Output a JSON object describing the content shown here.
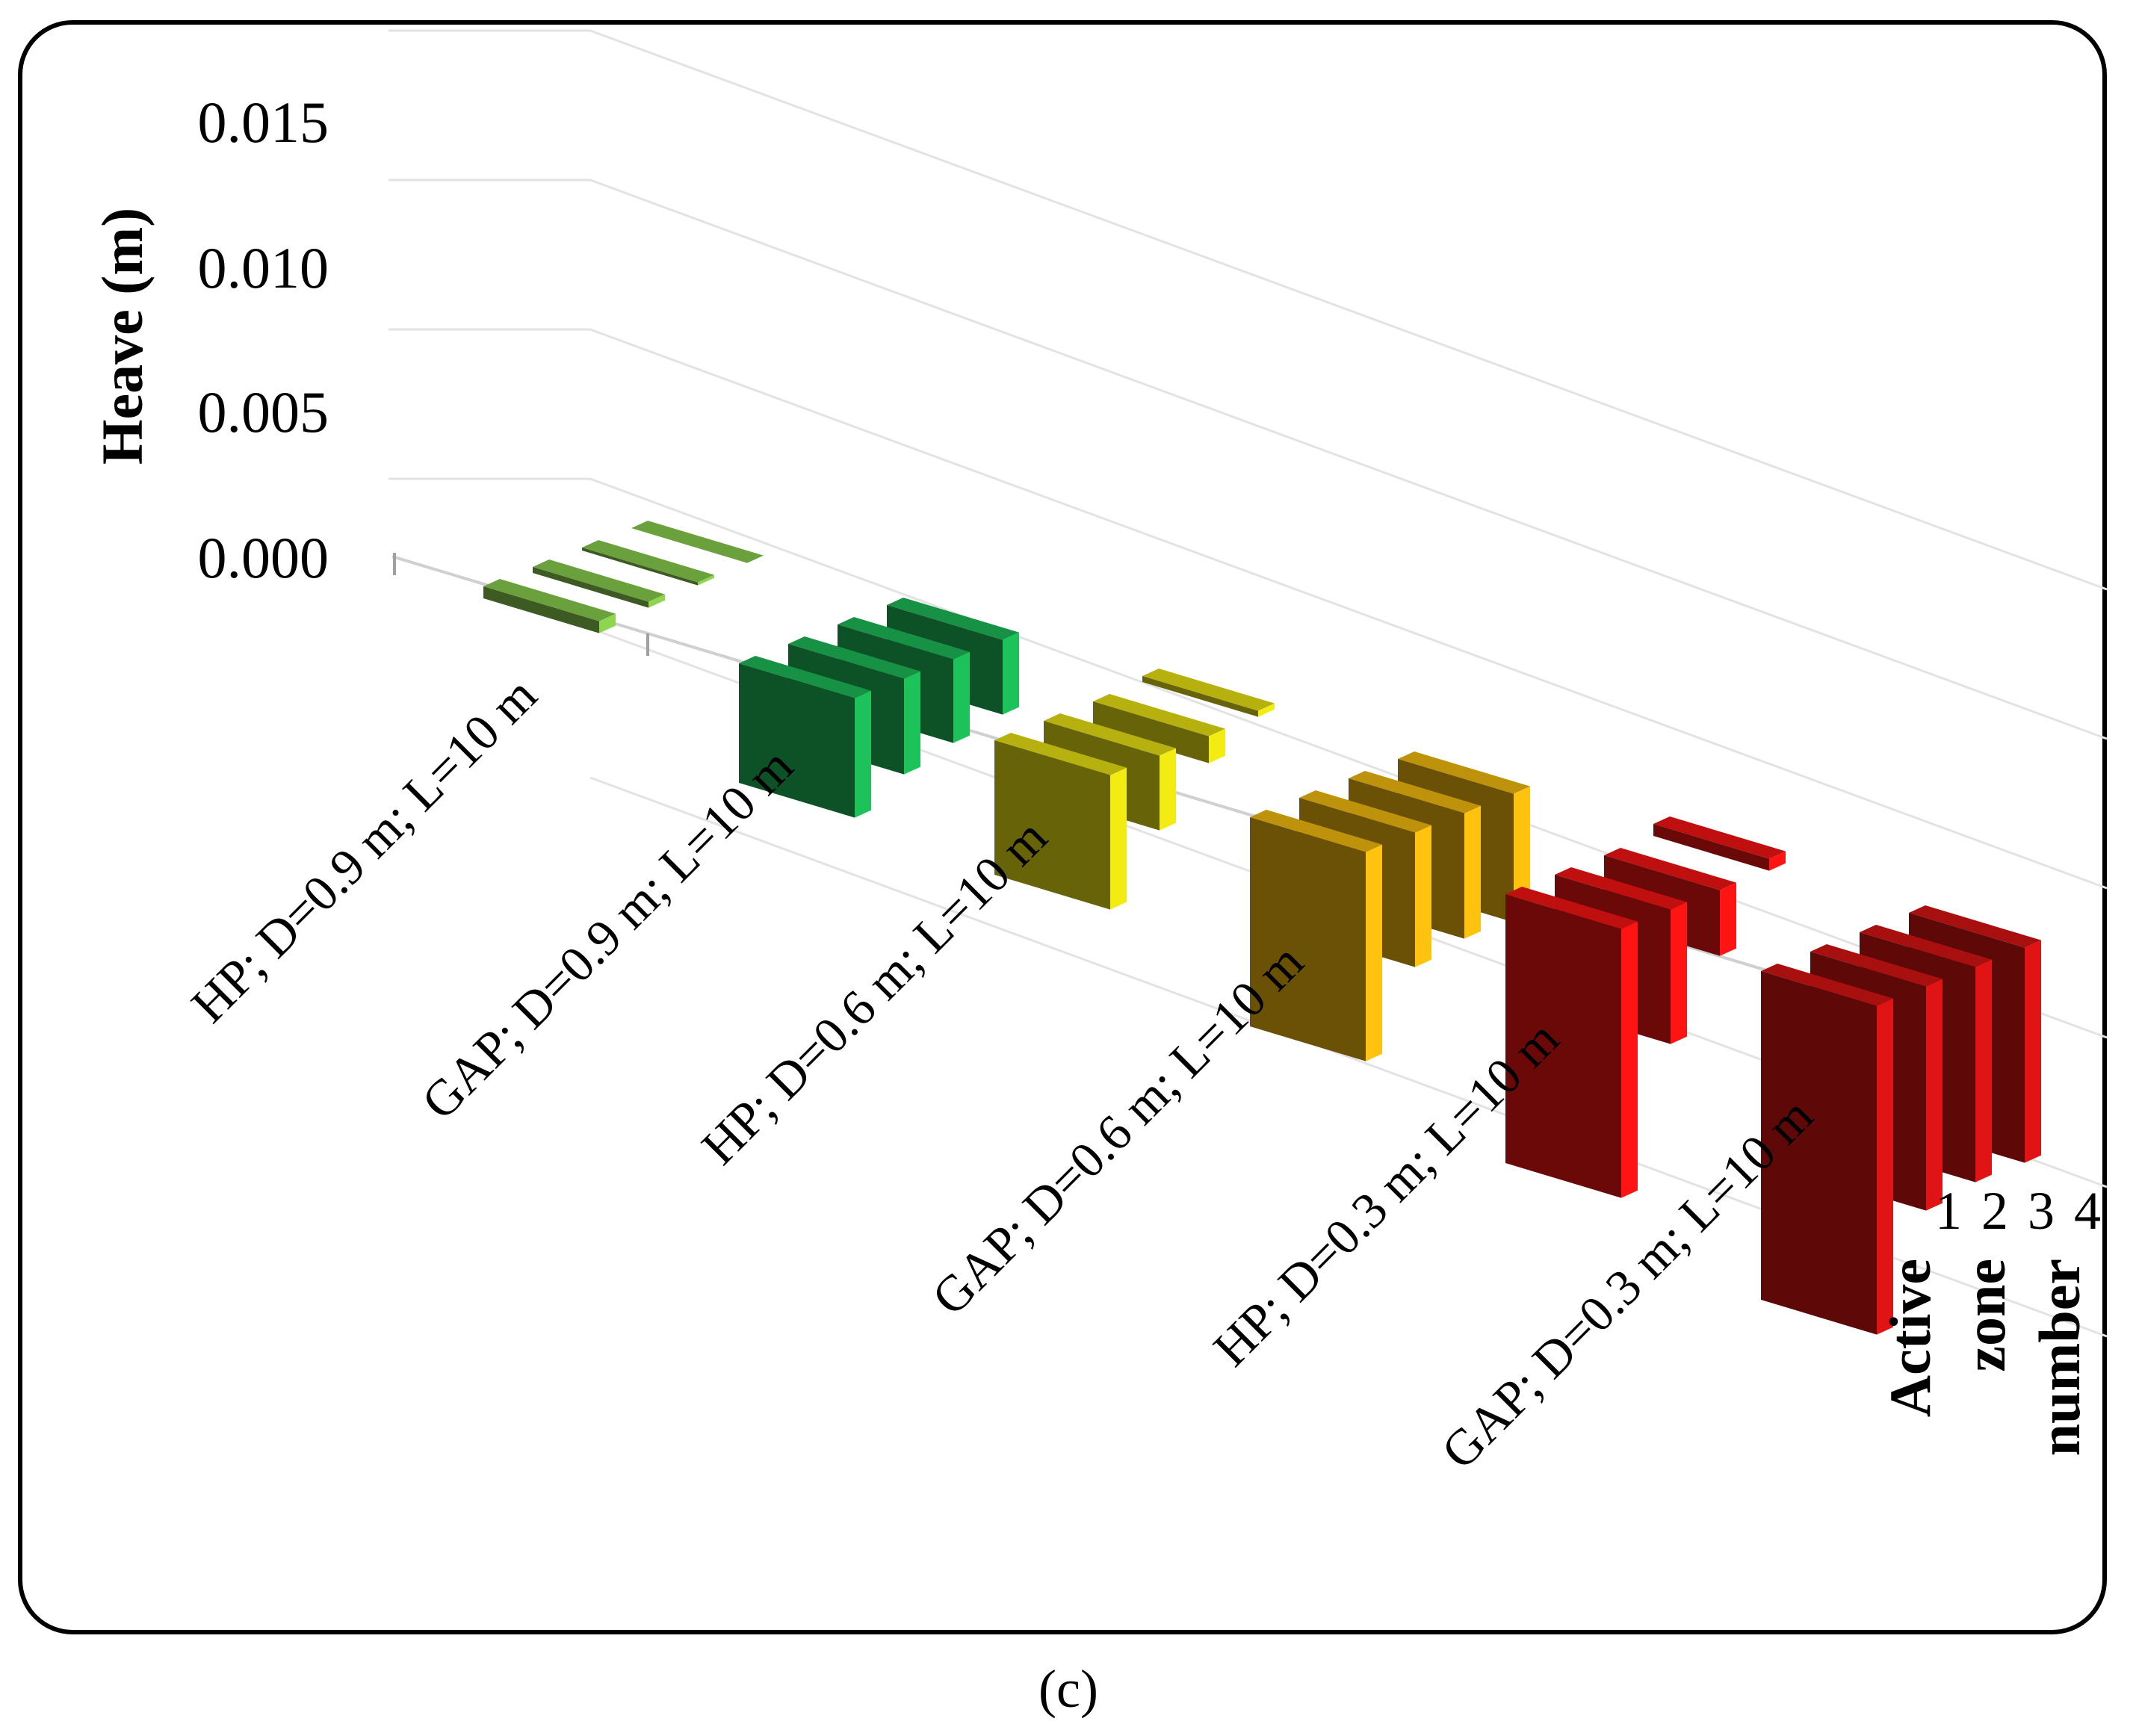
{
  "chart_data": {
    "type": "bar3d",
    "ylabel": "Heave (m)",
    "yticks": [
      "0.015",
      "0.010",
      "0.005",
      "0.000"
    ],
    "ytick_values": [
      0.015,
      0.01,
      0.005,
      0.0
    ],
    "ylim": [
      -0.01,
      0.015
    ],
    "categories": [
      "HP; D=0.9 m; L=10 m",
      "GAP; D=0.9 m; L=10 m",
      "HP; D=0.6 m; L=10 m",
      "GAP; D=0.6 m; L=10 m",
      "HP; D=0.3 m; L=10 m",
      "GAP; D=0.3 m; L=10 m"
    ],
    "depth_axis": {
      "title_lines": [
        "Active",
        "zone",
        "number"
      ],
      "labels": [
        "1",
        "2",
        "3",
        "4"
      ]
    },
    "series_colors": [
      "#8fd650",
      "#1ec25a",
      "#f2ec12",
      "#ffc20e",
      "#ff1414",
      "#e01414"
    ],
    "values": [
      [
        -0.0004,
        -0.0002,
        -0.0001,
        0.0
      ],
      [
        -0.004,
        -0.0032,
        -0.0028,
        -0.0025
      ],
      [
        -0.0045,
        -0.0025,
        -0.0009,
        0.0002
      ],
      [
        -0.007,
        -0.0045,
        -0.0042,
        -0.0043
      ],
      [
        -0.009,
        -0.0045,
        -0.0022,
        0.0004
      ],
      [
        -0.011,
        -0.0075,
        -0.0072,
        -0.0072
      ]
    ]
  },
  "figure_label": "(c)"
}
